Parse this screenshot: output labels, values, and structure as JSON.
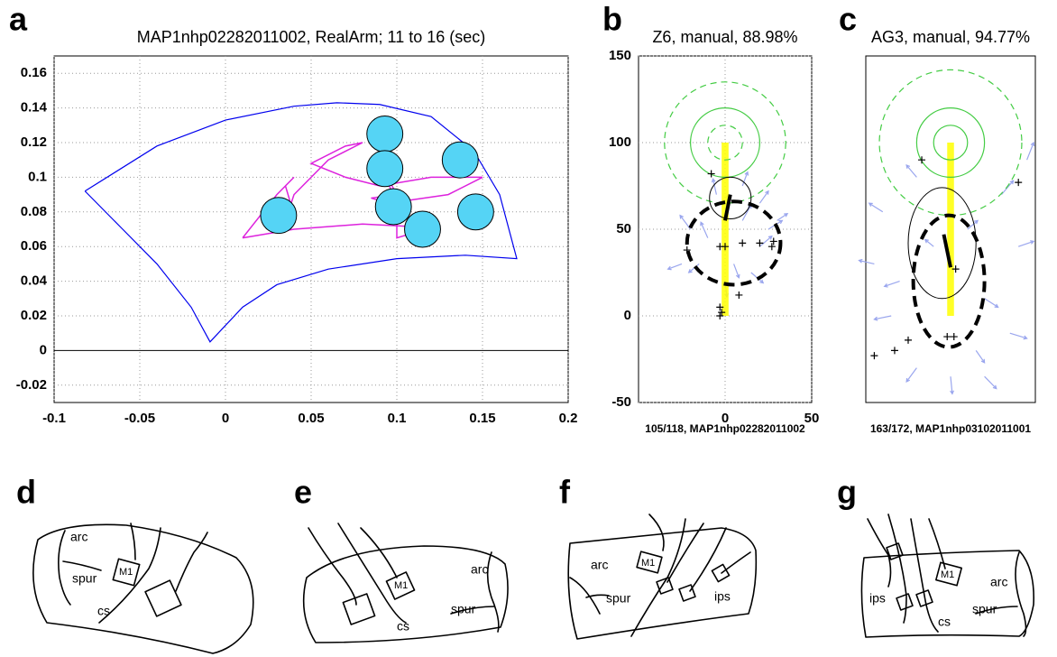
{
  "panel_labels": [
    "a",
    "b",
    "c",
    "d",
    "e",
    "f",
    "g"
  ],
  "chart_data": [
    {
      "type": "scatter",
      "title": "MAP1nhp02282011002, RealArm; 11 to 16 (sec)",
      "xlim": [
        -0.1,
        0.2
      ],
      "ylim": [
        -0.03,
        0.17
      ],
      "xticks": [
        -0.1,
        -0.05,
        0,
        0.05,
        0.1,
        0.15,
        0.2
      ],
      "yticks": [
        -0.02,
        0,
        0.02,
        0.04,
        0.06,
        0.08,
        0.1,
        0.12,
        0.14,
        0.16
      ],
      "grid": true,
      "lines": [
        {
          "color": "#0000ee",
          "x": [
            -0.082,
            -0.04,
            0,
            0.04,
            0.065,
            0.09,
            0.12,
            0.145,
            0.16,
            0.17,
            0.14,
            0.1,
            0.06,
            0.03,
            0.01,
            -0.009,
            -0.02,
            -0.04,
            -0.06,
            -0.082
          ],
          "y": [
            0.092,
            0.118,
            0.133,
            0.141,
            0.143,
            0.142,
            0.135,
            0.115,
            0.09,
            0.053,
            0.055,
            0.053,
            0.047,
            0.038,
            0.025,
            0.005,
            0.025,
            0.05,
            0.07,
            0.092
          ]
        },
        {
          "color": "#dd22dd",
          "x": [
            0.01,
            0.04,
            0.08,
            0.12,
            0.1,
            0.1,
            0.09,
            0.1,
            0.085,
            0.095,
            0.13,
            0.15,
            0.12,
            0.09,
            0.07,
            0.05,
            0.07,
            0.08,
            0.06,
            0.04,
            0.035,
            0.038,
            0.035,
            0.04,
            0.03,
            0.01
          ],
          "y": [
            0.065,
            0.07,
            0.073,
            0.071,
            0.065,
            0.085,
            0.108,
            0.09,
            0.088,
            0.085,
            0.09,
            0.1,
            0.1,
            0.095,
            0.1,
            0.108,
            0.118,
            0.12,
            0.11,
            0.09,
            0.075,
            0.085,
            0.095,
            0.1,
            0.09,
            0.065
          ]
        }
      ],
      "targets": {
        "color": "#55d4f5",
        "radius": 0.0105,
        "x": [
          0.031,
          0.093,
          0.093,
          0.098,
          0.115,
          0.137,
          0.146
        ],
        "y": [
          0.078,
          0.125,
          0.105,
          0.083,
          0.07,
          0.11,
          0.08
        ]
      }
    },
    {
      "type": "vector-field",
      "title": "Z6, manual, 88.98%",
      "footnote": "105/118, MAP1nhp02282011002",
      "xlim": [
        -50,
        50
      ],
      "ylim": [
        -50,
        150
      ],
      "xticks": [
        0,
        50
      ],
      "yticks": [
        -50,
        0,
        50,
        100,
        150
      ],
      "grid": true,
      "bar": {
        "x": 0,
        "y0": 0,
        "y1": 100,
        "width": 4,
        "color": "#ffff00"
      },
      "rings": {
        "cx": 0,
        "cy": 100,
        "solid": [
          20
        ],
        "dashed": [
          10,
          35
        ],
        "color": "#44cc44"
      },
      "ellipses": [
        {
          "cx": 3,
          "cy": 68,
          "rx": 12,
          "ry": 12,
          "dashed": false
        },
        {
          "cx": 5,
          "cy": 42,
          "rx": 27,
          "ry": 24,
          "dashed": true
        }
      ],
      "segment": {
        "x": [
          0,
          3
        ],
        "y": [
          55,
          70
        ]
      },
      "markers": {
        "x": [
          -8,
          -22,
          -3,
          0,
          10,
          20,
          27,
          28,
          8,
          -3,
          -2,
          -3
        ],
        "y": [
          82,
          38,
          40,
          40,
          42,
          42,
          40,
          43,
          12,
          5,
          2,
          0
        ]
      },
      "arrows": {
        "x": [
          -20,
          -10,
          0,
          10,
          20,
          -15,
          5,
          15,
          25,
          -5,
          0,
          10,
          -25,
          30,
          20
        ],
        "y": [
          50,
          45,
          60,
          55,
          40,
          30,
          30,
          25,
          50,
          70,
          20,
          75,
          30,
          55,
          65
        ],
        "dx": [
          -6,
          -4,
          2,
          5,
          7,
          -6,
          3,
          7,
          8,
          -2,
          1,
          3,
          -8,
          6,
          5
        ],
        "dy": [
          8,
          9,
          10,
          9,
          6,
          -5,
          -8,
          -6,
          5,
          9,
          -9,
          8,
          -3,
          4,
          7
        ]
      }
    },
    {
      "type": "vector-field",
      "title": "AG3, manual, 94.77%",
      "footnote": "163/172, MAP1nhp03102011001",
      "xlim": [
        -50,
        50
      ],
      "ylim": [
        -50,
        150
      ],
      "bar": {
        "x": 0,
        "y0": 0,
        "y1": 100,
        "width": 4,
        "color": "#ffff00"
      },
      "rings": {
        "cx": 0,
        "cy": 100,
        "solid": [
          10,
          20
        ],
        "dashed": [
          42
        ],
        "color": "#44cc44"
      },
      "ellipses": [
        {
          "cx": -5,
          "cy": 42,
          "rx": 20,
          "ry": 32,
          "dashed": false
        },
        {
          "cx": -1,
          "cy": 20,
          "rx": 21,
          "ry": 38,
          "dashed": true
        }
      ],
      "segment": {
        "x": [
          -4,
          0
        ],
        "y": [
          47,
          28
        ]
      },
      "markers": {
        "x": [
          -17,
          40,
          3,
          -45,
          -33,
          -25,
          -2,
          2
        ],
        "y": [
          90,
          77,
          27,
          -23,
          -20,
          -14,
          -12,
          -12
        ]
      },
      "arrows": {
        "x": [
          -40,
          -30,
          -20,
          -10,
          10,
          20,
          30,
          40,
          -35,
          35,
          -20,
          20,
          -45,
          45,
          0,
          15
        ],
        "y": [
          60,
          20,
          80,
          40,
          50,
          10,
          70,
          40,
          0,
          -10,
          -30,
          -35,
          30,
          90,
          -35,
          -20
        ],
        "dx": [
          -8,
          -9,
          -6,
          -5,
          6,
          8,
          7,
          9,
          -10,
          10,
          -6,
          7,
          -9,
          4,
          1,
          5
        ],
        "dy": [
          5,
          -3,
          7,
          4,
          5,
          -5,
          8,
          3,
          -2,
          -3,
          -8,
          -7,
          2,
          10,
          -10,
          -7
        ]
      }
    }
  ],
  "diagrams": [
    {
      "labels": [
        "arc",
        "spur",
        "M1",
        "cs"
      ]
    },
    {
      "labels": [
        "arc",
        "M1",
        "cs",
        "spur"
      ]
    },
    {
      "labels": [
        "arc",
        "M1",
        "spur",
        "ips"
      ]
    },
    {
      "labels": [
        "ips",
        "M1",
        "arc",
        "spur",
        "cs"
      ]
    }
  ]
}
